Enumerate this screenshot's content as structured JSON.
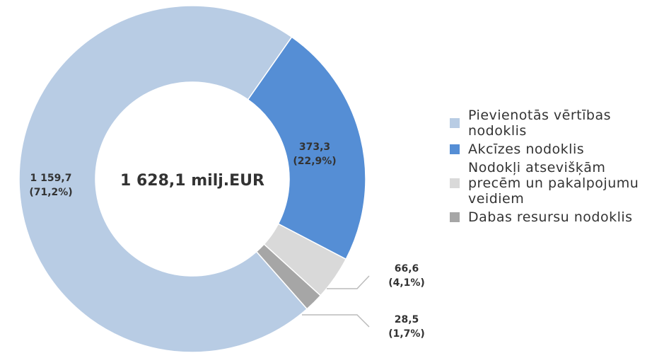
{
  "chart_data": {
    "type": "donut",
    "center_label": "1 628,1 milj.EUR",
    "categories": [
      "Pievienotās vērtības nodoklis",
      "Akcīzes nodoklis",
      "Nodokļi atsevišķām precēm un pakalpojumu veidiem",
      "Dabas resursu nodoklis"
    ],
    "values": [
      1159.7,
      373.3,
      66.6,
      28.5
    ],
    "value_labels": [
      "1 159,7",
      "373,3",
      "66,6",
      "28,5"
    ],
    "shares": [
      71.2,
      22.9,
      4.1,
      1.7
    ],
    "share_labels": [
      "(71,2%)",
      "(22,9%)",
      "(4,1%)",
      "(1,7%)"
    ],
    "colors": [
      "#b8cce4",
      "#558ed5",
      "#d9d9d9",
      "#a6a6a6"
    ],
    "legend": "right"
  }
}
